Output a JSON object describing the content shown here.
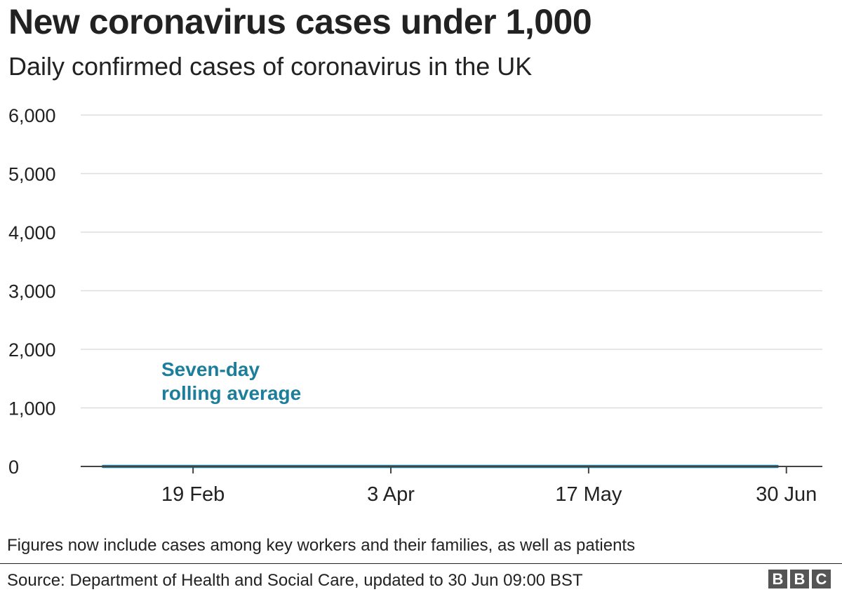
{
  "title": "New coronavirus cases under 1,000",
  "subtitle": "Daily confirmed cases of coronavirus in the UK",
  "footnote": "Figures now include cases among key workers and their families, as well as patients",
  "source": "Source: Department of Health and Social Care, updated to 30 Jun 09:00 BST",
  "logo": [
    "B",
    "B",
    "C"
  ],
  "colors": {
    "bars": "#a8ceda",
    "line": "#1d7e9c",
    "text": "#222222",
    "grid": "#dddddd"
  },
  "chart_data": {
    "type": "bar",
    "title": "New coronavirus cases under 1,000",
    "subtitle": "Daily confirmed cases of coronavirus in the UK",
    "xlabel": "",
    "ylabel": "",
    "ylim": [
      0,
      6000
    ],
    "yticks": [
      0,
      1000,
      2000,
      3000,
      4000,
      5000,
      6000
    ],
    "ytick_labels": [
      "0",
      "1,000",
      "2,000",
      "3,000",
      "4,000",
      "5,000",
      "6,000"
    ],
    "x_start": "2020-01-30",
    "xlim": [
      "2020-01-25",
      "2020-07-08"
    ],
    "xticks": [
      "2020-02-19",
      "2020-04-03",
      "2020-05-17",
      "2020-06-30"
    ],
    "xtick_labels": [
      "19 Feb",
      "3 Apr",
      "17 May",
      "30 Jun"
    ],
    "grid": true,
    "annotation": "Seven-day rolling average",
    "series": [
      {
        "type": "bar",
        "values": [
          0,
          0,
          0,
          0,
          0,
          0,
          0,
          0,
          0,
          0,
          0,
          0,
          0,
          0,
          0,
          0,
          0,
          0,
          0,
          0,
          0,
          0,
          0,
          0,
          0,
          0,
          0,
          0,
          0,
          0,
          0,
          0,
          0,
          0,
          0,
          0,
          0,
          0,
          0,
          0,
          0,
          0,
          0,
          0,
          0,
          0,
          0,
          0,
          0,
          0,
          0,
          0,
          0,
          0,
          0,
          0,
          0,
          0,
          0,
          0,
          0,
          0,
          0,
          0,
          0,
          0,
          0,
          0,
          0,
          0,
          0,
          0,
          0,
          0,
          0,
          0,
          0,
          0,
          0,
          0,
          0,
          0,
          0,
          0,
          0,
          0,
          0,
          0,
          0,
          0,
          0,
          0,
          0,
          0,
          0,
          0,
          0,
          0,
          0,
          0,
          0,
          0,
          0,
          0,
          0,
          0,
          0,
          0,
          0,
          0,
          0,
          0,
          0,
          0,
          0,
          0,
          0,
          0,
          0,
          0,
          0,
          0,
          0,
          0,
          0,
          0,
          0,
          0,
          0,
          0,
          0,
          0,
          0,
          0,
          0,
          0,
          0,
          0,
          0,
          0,
          0,
          0,
          0,
          0,
          0,
          0,
          0,
          0,
          0,
          0,
          0
        ]
      },
      {
        "type": "line",
        "values": [
          0,
          0,
          0,
          0,
          0,
          0,
          0,
          0,
          0,
          0,
          0,
          0,
          0,
          0,
          0,
          0,
          0,
          0,
          0,
          0,
          0,
          0,
          0,
          0,
          0,
          0,
          0,
          0,
          0,
          0,
          0,
          0,
          0,
          0,
          0,
          0,
          0,
          0,
          0,
          0,
          0,
          0,
          0,
          0,
          0,
          0,
          0,
          0,
          0,
          0,
          0,
          0,
          0,
          0,
          0,
          0,
          0,
          0,
          0,
          0,
          0,
          0,
          0,
          0,
          0,
          0,
          0,
          0,
          0,
          0,
          0,
          0,
          0,
          0,
          0,
          0,
          0,
          0,
          0,
          0,
          0,
          0,
          0,
          0,
          0,
          0,
          0,
          0,
          0,
          0,
          0,
          0,
          0,
          0,
          0,
          0,
          0,
          0,
          0,
          0,
          0,
          0,
          0,
          0,
          0,
          0,
          0,
          0,
          0,
          0,
          0,
          0,
          0,
          0,
          0,
          0,
          0,
          0,
          0,
          0,
          0,
          0,
          0,
          0,
          0,
          0,
          0,
          0,
          0,
          0,
          0,
          0,
          0,
          0,
          0,
          0,
          0,
          0,
          0,
          0,
          0,
          0,
          0,
          0,
          0,
          0,
          0,
          0,
          0,
          0,
          0
        ]
      }
    ]
  }
}
